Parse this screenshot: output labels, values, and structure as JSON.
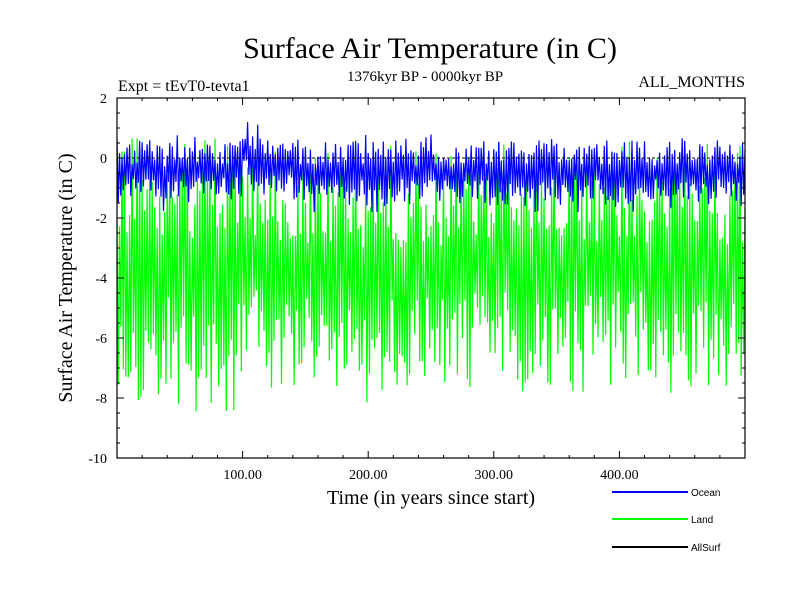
{
  "chart_data": {
    "type": "line",
    "title": "Surface Air Temperature (in C)",
    "subtitle": "1376kyr BP - 0000kyr BP",
    "expt_label": "Expt = tEvT0-tevta1",
    "months_label": "ALL_MONTHS",
    "xlabel": "Time (in years since start)",
    "ylabel": "Surface Air Temperature (in C)",
    "xlim": [
      0,
      500
    ],
    "ylim": [
      -10,
      2
    ],
    "x_ticks": [
      100,
      200,
      300,
      400
    ],
    "x_tick_labels": [
      "100.00",
      "200.00",
      "300.00",
      "400.00"
    ],
    "y_ticks": [
      2,
      0,
      -2,
      -4,
      -6,
      -8,
      -10
    ],
    "y_tick_labels": [
      "2",
      "0",
      "-2",
      "-4",
      "-6",
      "-8",
      "-10"
    ],
    "zero_line": 0,
    "series": [
      {
        "name": "Land",
        "color": "#00ff00",
        "mean": -3.5,
        "band_min": -8.5,
        "band_max": 1.0,
        "envelope": {
          "x": [
            0,
            20,
            50,
            80,
            99,
            101,
            150,
            200,
            300,
            400,
            500
          ],
          "low": [
            -7.5,
            -8.4,
            -8.0,
            -8.2,
            -8.0,
            -7.0,
            -7.6,
            -8.0,
            -7.6,
            -7.6,
            -7.8
          ],
          "high": [
            1.0,
            0.8,
            0.7,
            0.9,
            0.8,
            0.5,
            0.2,
            0.3,
            0.3,
            0.4,
            0.4
          ]
        }
      },
      {
        "name": "Ocean",
        "color": "#0000ff",
        "mean": -0.6,
        "band_min": -1.8,
        "band_max": 1.2,
        "envelope": {
          "x": [
            0,
            50,
            99,
            101,
            110,
            150,
            200,
            300,
            400,
            500
          ],
          "low": [
            -1.4,
            -1.5,
            -1.4,
            -0.8,
            -1.2,
            -1.5,
            -1.6,
            -1.6,
            -1.6,
            -1.5
          ],
          "high": [
            0.6,
            0.5,
            0.6,
            1.2,
            0.9,
            0.6,
            0.6,
            0.6,
            0.6,
            0.6
          ]
        }
      },
      {
        "name": "AllSurf",
        "color": "#000000"
      }
    ],
    "legend": [
      "Ocean",
      "Land",
      "AllSurf"
    ],
    "legend_position": "bottom-right"
  }
}
